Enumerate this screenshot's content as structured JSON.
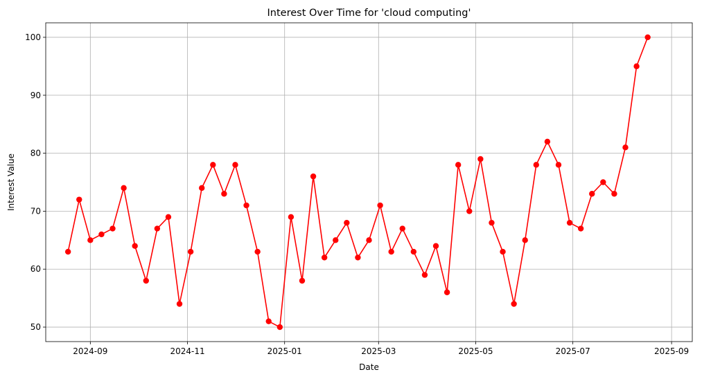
{
  "chart_data": {
    "type": "line",
    "title": "Interest Over Time for 'cloud computing'",
    "xlabel": "Date",
    "ylabel": "Interest Value",
    "grid": true,
    "line_color": "#ff0000",
    "marker": "circle",
    "xlim": [
      "2024-08-04",
      "2025-09-14"
    ],
    "ylim": [
      47.5,
      102.5
    ],
    "x_ticks": [
      {
        "date": "2024-09-01",
        "label": "2024-09"
      },
      {
        "date": "2024-11-01",
        "label": "2024-11"
      },
      {
        "date": "2025-01-01",
        "label": "2025-01"
      },
      {
        "date": "2025-03-01",
        "label": "2025-03"
      },
      {
        "date": "2025-05-01",
        "label": "2025-05"
      },
      {
        "date": "2025-07-01",
        "label": "2025-07"
      },
      {
        "date": "2025-09-01",
        "label": "2025-09"
      }
    ],
    "y_ticks": [
      50,
      60,
      70,
      80,
      90,
      100
    ],
    "series": [
      {
        "x": [
          "2024-08-18",
          "2024-08-25",
          "2024-09-01",
          "2024-09-08",
          "2024-09-15",
          "2024-09-22",
          "2024-09-29",
          "2024-10-06",
          "2024-10-13",
          "2024-10-20",
          "2024-10-27",
          "2024-11-03",
          "2024-11-10",
          "2024-11-17",
          "2024-11-24",
          "2024-12-01",
          "2024-12-08",
          "2024-12-15",
          "2024-12-22",
          "2024-12-29",
          "2025-01-05",
          "2025-01-12",
          "2025-01-19",
          "2025-01-26",
          "2025-02-02",
          "2025-02-09",
          "2025-02-16",
          "2025-02-23",
          "2025-03-02",
          "2025-03-09",
          "2025-03-16",
          "2025-03-23",
          "2025-03-30",
          "2025-04-06",
          "2025-04-13",
          "2025-04-20",
          "2025-04-27",
          "2025-05-04",
          "2025-05-11",
          "2025-05-18",
          "2025-05-25",
          "2025-06-01",
          "2025-06-08",
          "2025-06-15",
          "2025-06-22",
          "2025-06-29",
          "2025-07-06",
          "2025-07-13",
          "2025-07-20",
          "2025-07-27",
          "2025-08-03",
          "2025-08-10",
          "2025-08-17"
        ],
        "values": [
          63,
          72,
          65,
          66,
          67,
          74,
          64,
          58,
          67,
          69,
          54,
          63,
          74,
          78,
          73,
          78,
          71,
          63,
          51,
          50,
          69,
          58,
          76,
          62,
          65,
          68,
          62,
          65,
          71,
          63,
          67,
          63,
          59,
          64,
          56,
          78,
          70,
          79,
          68,
          63,
          54,
          65,
          78,
          82,
          78,
          68,
          67,
          73,
          75,
          73,
          81,
          95,
          100
        ]
      }
    ]
  }
}
